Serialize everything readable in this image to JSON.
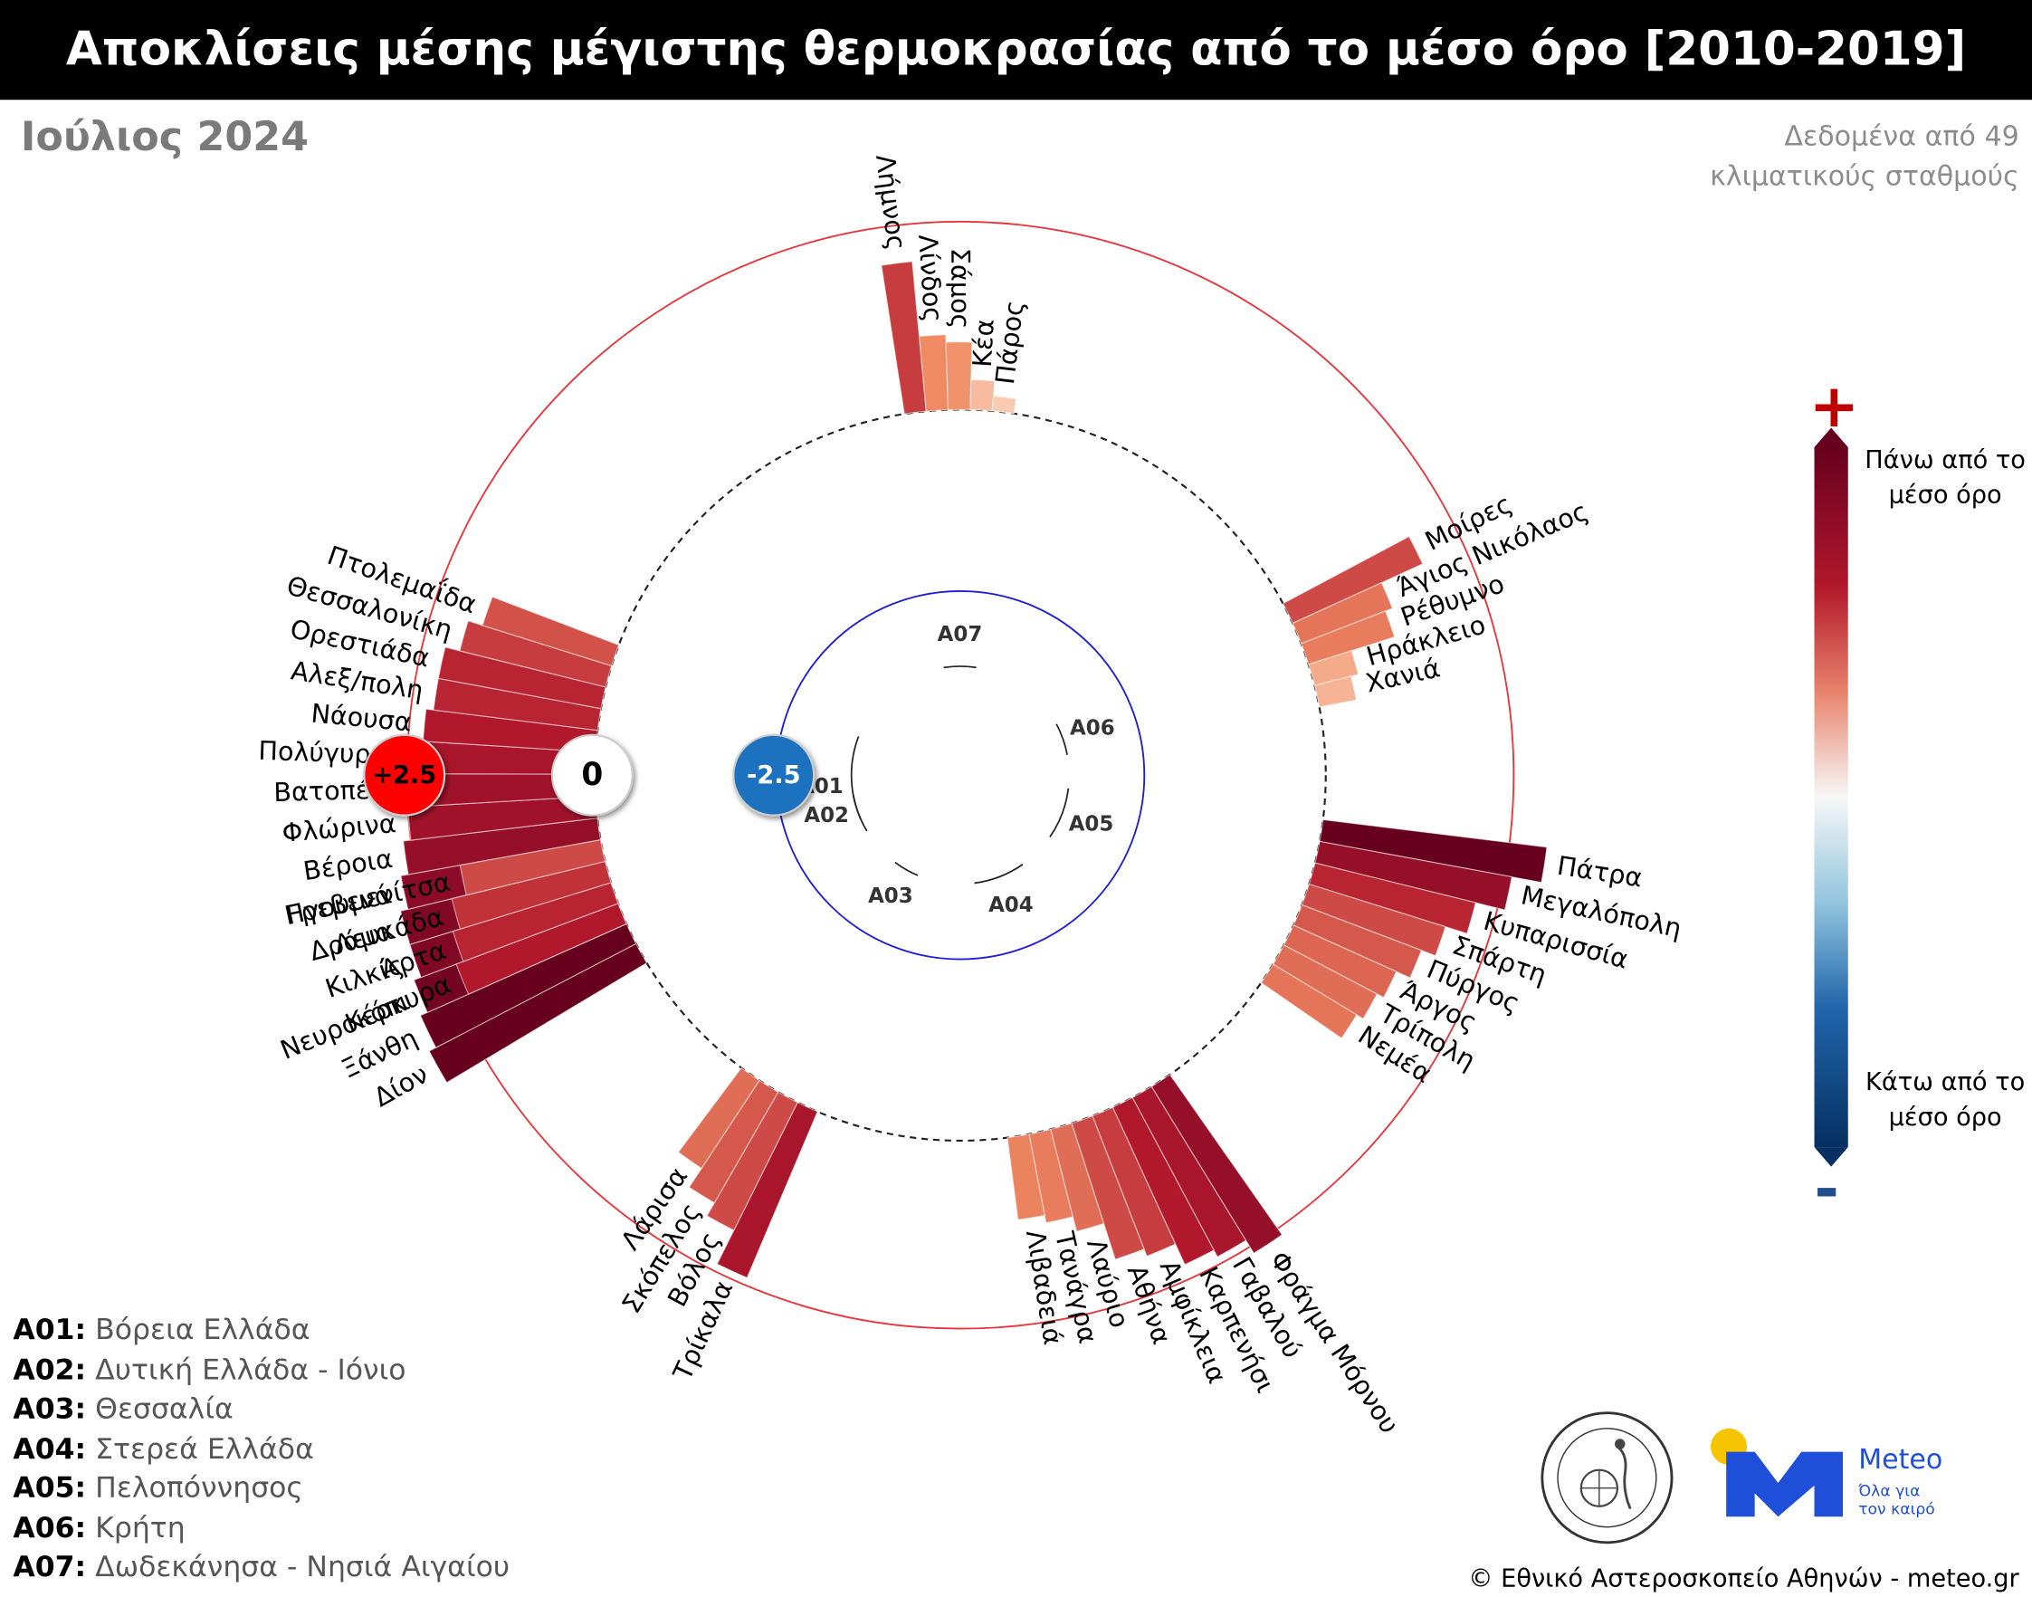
{
  "title": "Αποκλίσεις μέσης μέγιστης θερμοκρασίας από το μέσο όρο [2010-2019]",
  "subtitle": "Ιούλιος 2024",
  "source_note": "Δεδομένα από 49 κλιματικούς σταθμούς",
  "ring_labels": {
    "outer": "+2.5",
    "zero": "0",
    "inner": "-2.5"
  },
  "colorbar": {
    "plus": "+",
    "minus": "-",
    "top_label": "Πάνω από το μέσο όρο",
    "bottom_label": "Κάτω από το μέσο όρο"
  },
  "legend": [
    {
      "code": "A01:",
      "name": "Βόρεια Ελλάδα"
    },
    {
      "code": "A02:",
      "name": "Δυτική Ελλάδα - Ιόνιο"
    },
    {
      "code": "A03:",
      "name": "Θεσσαλία"
    },
    {
      "code": "A04:",
      "name": "Στερεά Ελλάδα"
    },
    {
      "code": "A05:",
      "name": "Πελοπόννησος"
    },
    {
      "code": "A06:",
      "name": "Κρήτη"
    },
    {
      "code": "A07:",
      "name": "Δωδεκάνησα - Νησιά Αιγαίου"
    }
  ],
  "logos": {
    "meteo_name": "Meteo",
    "meteo_tagline_1": "Όλα για",
    "meteo_tagline_2": "τον καιρό"
  },
  "copyright": "© Εθνικό Αστεροσκοπείο Αθηνών - meteo.gr",
  "colors": {
    "outer_ring": "#e8363b",
    "inner_ring": "#1f1fd6",
    "plus_badge": "#ff0000",
    "minus_badge": "#1e72be",
    "title_bg": "#000000"
  },
  "chart_data": {
    "type": "radial-bar",
    "unit": "°C",
    "rings": [
      2.5,
      0,
      -2.5
    ],
    "groups": [
      {
        "code": "A01",
        "stations": [
          {
            "name": "Δίον",
            "value": 3.1
          },
          {
            "name": "Ξάνθη",
            "value": 3.0
          },
          {
            "name": "Νευροκόπι",
            "value": 2.9
          },
          {
            "name": "Κιλκίς",
            "value": 2.8
          },
          {
            "name": "Δράμα",
            "value": 2.8
          },
          {
            "name": "Γρεβενά",
            "value": 2.7
          },
          {
            "name": "Βέροια",
            "value": 2.6
          },
          {
            "name": "Φλώρινα",
            "value": 2.5
          },
          {
            "name": "Βατοπέδι",
            "value": 2.5
          },
          {
            "name": "Πολύγυρος",
            "value": 2.4
          },
          {
            "name": "Νάουσα",
            "value": 2.3
          },
          {
            "name": "Αλεξ/πολη",
            "value": 2.2
          },
          {
            "name": "Ορεστιάδα",
            "value": 2.2
          },
          {
            "name": "Θεσσαλονίκη",
            "value": 2.0
          },
          {
            "name": "Πτολεμαΐδα",
            "value": 1.8
          }
        ]
      },
      {
        "code": "A07",
        "stations": [
          {
            "name": "Λήμνος",
            "value": 2.0
          },
          {
            "name": "Λίνδος",
            "value": 1.0
          },
          {
            "name": "Σάμος",
            "value": 0.9
          },
          {
            "name": "Κέα",
            "value": 0.4
          },
          {
            "name": "Πάρος",
            "value": 0.2
          }
        ]
      },
      {
        "code": "A06",
        "stations": [
          {
            "name": "Μοίρες",
            "value": 1.9
          },
          {
            "name": "Άγιος Νικόλαος",
            "value": 1.3
          },
          {
            "name": "Ρέθυμνο",
            "value": 1.2
          },
          {
            "name": "Ηράκλειο",
            "value": 0.6
          },
          {
            "name": "Χανιά",
            "value": 0.5
          }
        ]
      },
      {
        "code": "A05",
        "stations": [
          {
            "name": "Πάτρα",
            "value": 3.0
          },
          {
            "name": "Μεγαλόπολη",
            "value": 2.6
          },
          {
            "name": "Κυπαρισσία",
            "value": 2.2
          },
          {
            "name": "Σπάρτη",
            "value": 1.9
          },
          {
            "name": "Πύργος",
            "value": 1.7
          },
          {
            "name": "Άργος",
            "value": 1.5
          },
          {
            "name": "Τρίπολη",
            "value": 1.4
          },
          {
            "name": "Νεμέα",
            "value": 1.3
          }
        ]
      },
      {
        "code": "A04",
        "stations": [
          {
            "name": "Φράγμα Μόρνου",
            "value": 2.6
          },
          {
            "name": "Γαβαλού",
            "value": 2.4
          },
          {
            "name": "Καρπενήσι",
            "value": 2.3
          },
          {
            "name": "Αμφίκλεια",
            "value": 2.0
          },
          {
            "name": "Αθήνα",
            "value": 1.9
          },
          {
            "name": "Λαύριο",
            "value": 1.4
          },
          {
            "name": "Τανάγρα",
            "value": 1.2
          },
          {
            "name": "Λιβαδειά",
            "value": 1.1
          }
        ]
      },
      {
        "code": "A03",
        "stations": [
          {
            "name": "Τρίκαλα",
            "value": 2.4
          },
          {
            "name": "Βόλος",
            "value": 1.9
          },
          {
            "name": "Σκόπελος",
            "value": 1.7
          },
          {
            "name": "Λάρισα",
            "value": 1.4
          }
        ]
      },
      {
        "code": "A02",
        "stations": [
          {
            "name": "Κέρκυρα",
            "value": 2.3
          },
          {
            "name": "Άρτα",
            "value": 2.2
          },
          {
            "name": "Λευκάδα",
            "value": 2.1
          },
          {
            "name": "Ηγουμενίτσα",
            "value": 1.9
          }
        ]
      }
    ]
  }
}
